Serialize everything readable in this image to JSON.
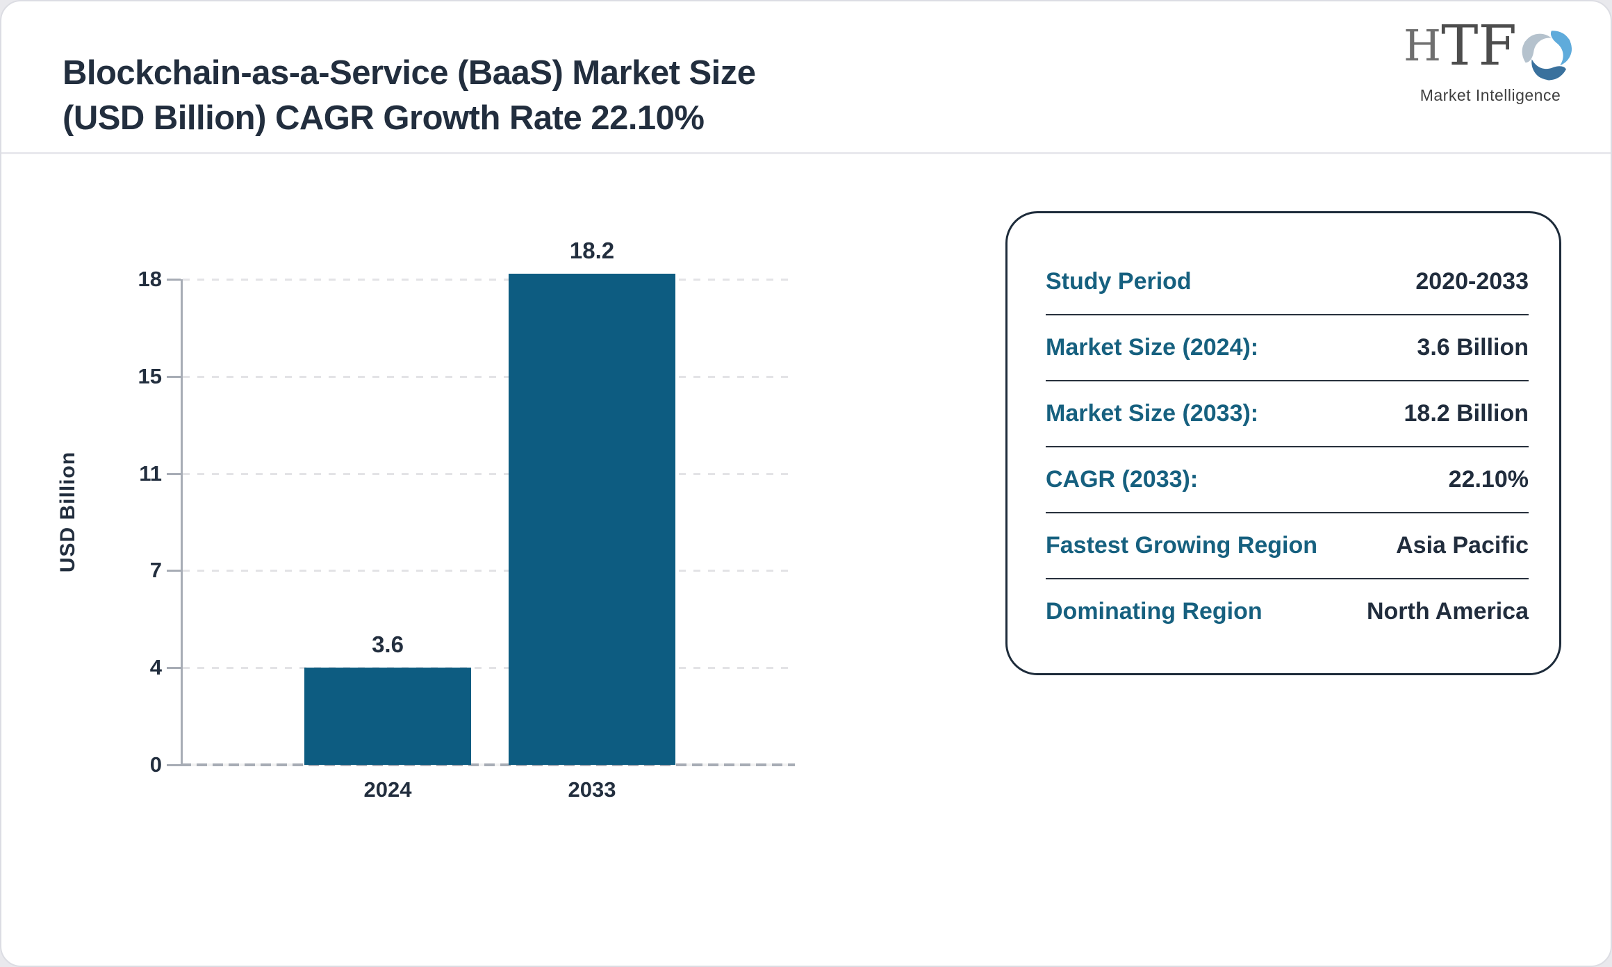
{
  "header": {
    "title_line1": "Blockchain-as-a-Service (BaaS) Market Size",
    "title_line2": "(USD Billion) CAGR Growth Rate 22.10%"
  },
  "logo": {
    "h": "H",
    "tf": "TF",
    "subtext": "Market Intelligence",
    "swirl_colors": [
      "#5fabdb",
      "#3a719d",
      "#b5c2cd"
    ]
  },
  "chart_data": {
    "type": "bar",
    "categories": [
      "2024",
      "2033"
    ],
    "values": [
      3.6,
      18.2
    ],
    "bar_labels": [
      "3.6",
      "18.2"
    ],
    "title": "Blockchain-as-a-Service (BaaS) Market Size (USD Billion) CAGR Growth Rate 22.10%",
    "xlabel": "",
    "ylabel": "USD Billion",
    "yticks": [
      0,
      4,
      7,
      11,
      15,
      18
    ],
    "ylim": [
      0,
      18
    ],
    "grid": "horizontal-dashed",
    "legend": "none",
    "bar_color": "#0d5c81"
  },
  "info_panel": {
    "rows": [
      {
        "label": "Study Period",
        "value": "2020-2033"
      },
      {
        "label": "Market Size (2024):",
        "value": "3.6 Billion"
      },
      {
        "label": "Market Size (2033):",
        "value": "18.2 Billion"
      },
      {
        "label": "CAGR (2033):",
        "value": "22.10%"
      },
      {
        "label": "Fastest Growing Region",
        "value": "Asia Pacific"
      },
      {
        "label": "Dominating Region",
        "value": "North America"
      }
    ]
  },
  "colors": {
    "bar": "#0d5c81",
    "accent_teal": "#16607f",
    "dark_text": "#222e3e",
    "axis_gray": "#a7acb5",
    "gridline": "#e3e3e6",
    "panel_border": "#1d2b3a"
  }
}
